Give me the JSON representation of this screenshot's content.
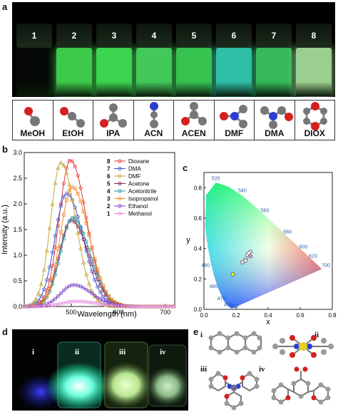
{
  "panel_labels": {
    "a": "a",
    "b": "b",
    "c": "c",
    "d": "d",
    "e": "e"
  },
  "vial_numbers": [
    "1",
    "2",
    "3",
    "4",
    "5",
    "6",
    "7",
    "8"
  ],
  "vial_colors": [
    "#050805",
    "#3fc94a",
    "#3cd450",
    "#43c95a",
    "#36c24f",
    "#2fbfa8",
    "#35b95a",
    "#9ccf8f"
  ],
  "solvents": [
    "MeOH",
    "EtOH",
    "IPA",
    "ACN",
    "ACEN",
    "DMF",
    "DMA",
    "DIOX"
  ],
  "chart_data": {
    "type": "line",
    "xlabel": "Wavelength (nm)",
    "ylabel": "Intensity (a.u.)",
    "xlim": [
      400,
      720
    ],
    "ylim": [
      0,
      3.0
    ],
    "xticks": [
      "500",
      "600",
      "700"
    ],
    "yticks": [
      "0.0",
      "0.5",
      "1.0",
      "1.5",
      "2.0",
      "2.5",
      "3.0"
    ],
    "legend_numbers": [
      "8",
      "7",
      "6",
      "5",
      "4",
      "3",
      "2",
      "1"
    ],
    "series": [
      {
        "name": "Dioxane",
        "color": "#e0333a",
        "peak_x": 498,
        "peak_y": 2.85,
        "width": 48
      },
      {
        "name": "DMA",
        "color": "#3553c8",
        "peak_x": 490,
        "peak_y": 2.2,
        "width": 50
      },
      {
        "name": "DMF",
        "color": "#c7a53a",
        "peak_x": 478,
        "peak_y": 2.8,
        "width": 44
      },
      {
        "name": "Acetone",
        "color": "#8a1f4a",
        "peak_x": 500,
        "peak_y": 1.68,
        "width": 52
      },
      {
        "name": "Acetonitrile",
        "color": "#2f8fa0",
        "peak_x": 503,
        "peak_y": 1.73,
        "width": 52
      },
      {
        "name": "Isopropanol",
        "color": "#f08a28",
        "peak_x": 502,
        "peak_y": 2.33,
        "width": 50
      },
      {
        "name": "Ethanol",
        "color": "#7a3bc8",
        "peak_x": 505,
        "peak_y": 0.42,
        "width": 55
      },
      {
        "name": "Methanol",
        "color": "#e08ae0",
        "peak_x": 510,
        "peak_y": 0.1,
        "width": 60
      }
    ]
  },
  "cie": {
    "xlabel": "x",
    "ylabel": "y",
    "xticks": [
      "0.0",
      "0.2",
      "0.4",
      "0.6",
      "0.8"
    ],
    "yticks": [
      "0.0",
      "0.2",
      "0.4",
      "0.6",
      "0.8"
    ],
    "wavelengths": [
      "520",
      "540",
      "560",
      "580",
      "600",
      "620",
      "700",
      "490",
      "480",
      "470",
      "460",
      "380"
    ]
  },
  "photo_labels": [
    "i",
    "ii",
    "iii",
    "iv"
  ],
  "structure_labels": [
    "i",
    "ii",
    "iii",
    "iv"
  ]
}
